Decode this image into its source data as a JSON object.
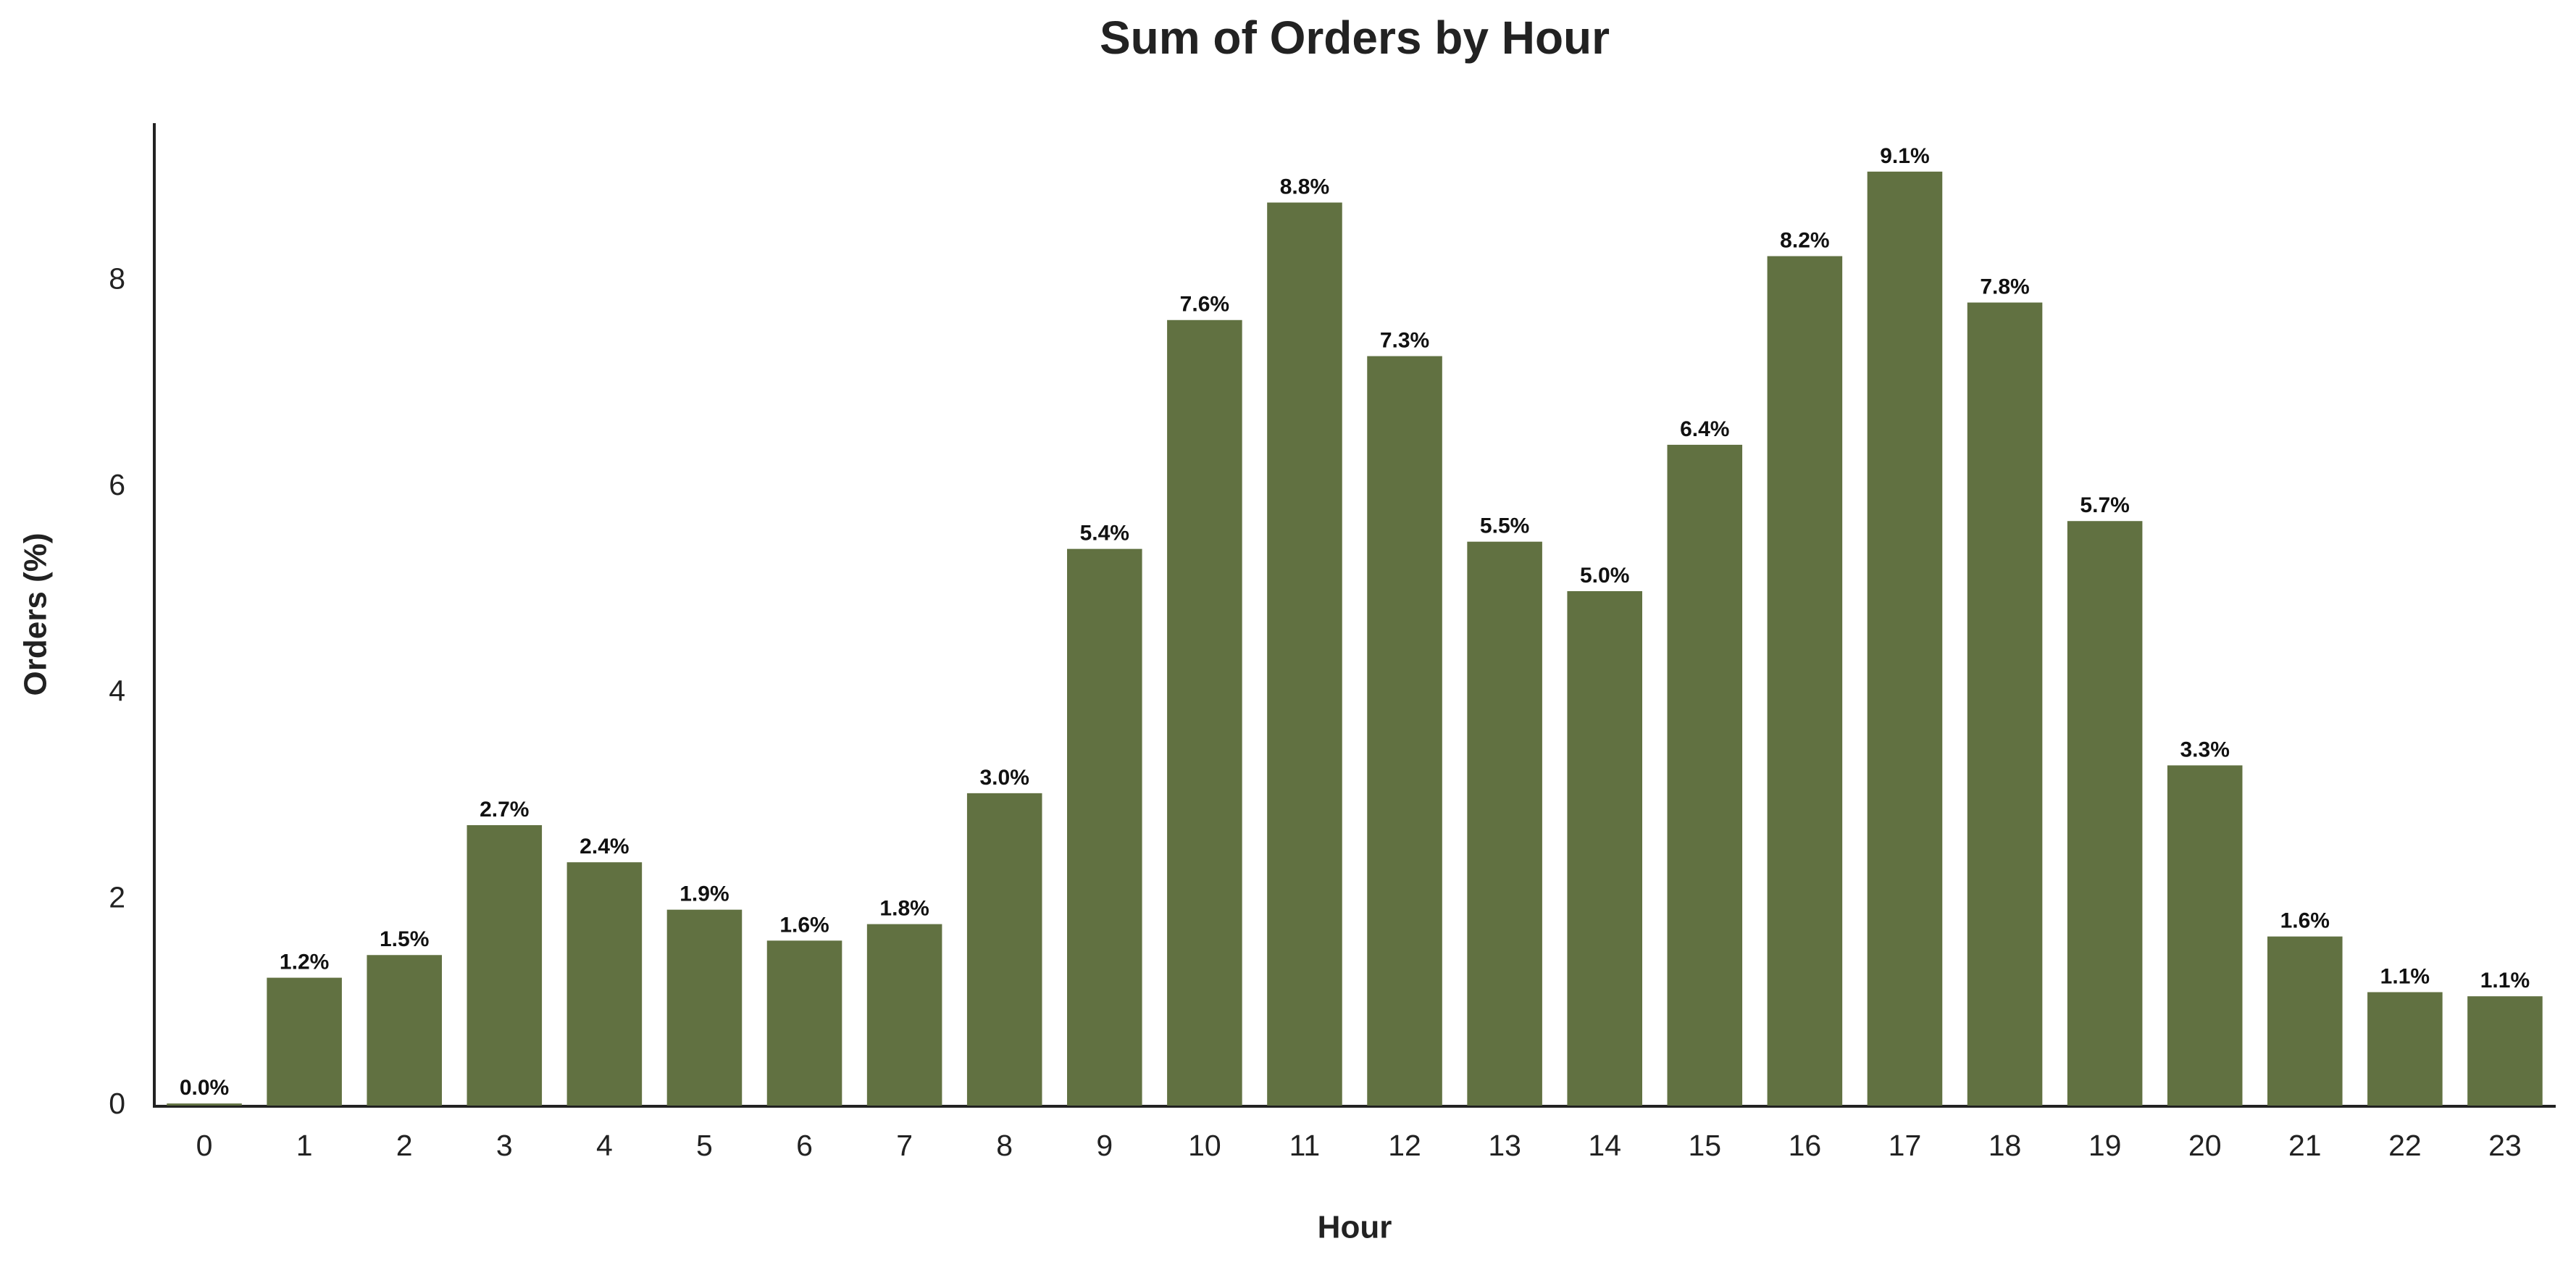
{
  "chart_data": {
    "type": "bar",
    "title": "Sum of Orders by Hour",
    "x_label": "Hour",
    "y_label": "Orders (%)",
    "categories": [
      "0",
      "1",
      "2",
      "3",
      "4",
      "5",
      "6",
      "7",
      "8",
      "9",
      "10",
      "11",
      "12",
      "13",
      "14",
      "15",
      "16",
      "17",
      "18",
      "19",
      "20",
      "21",
      "22",
      "23"
    ],
    "values": [
      0.02,
      1.24,
      1.46,
      2.72,
      2.36,
      1.9,
      1.6,
      1.76,
      3.03,
      5.4,
      7.62,
      8.76,
      7.27,
      5.47,
      4.99,
      6.41,
      8.24,
      9.06,
      7.79,
      5.67,
      3.3,
      1.64,
      1.1,
      1.06
    ],
    "value_labels": [
      "0.0%",
      "1.2%",
      "1.5%",
      "2.7%",
      "2.4%",
      "1.9%",
      "1.6%",
      "1.8%",
      "3.0%",
      "5.4%",
      "7.6%",
      "8.8%",
      "7.3%",
      "5.5%",
      "5.0%",
      "6.4%",
      "8.2%",
      "9.1%",
      "7.8%",
      "5.7%",
      "3.3%",
      "1.6%",
      "1.1%",
      "1.1%"
    ],
    "color": "#617141",
    "ylim": [
      0,
      9.53
    ],
    "yticks": [
      0,
      2,
      4,
      6,
      8
    ],
    "grid": false
  }
}
